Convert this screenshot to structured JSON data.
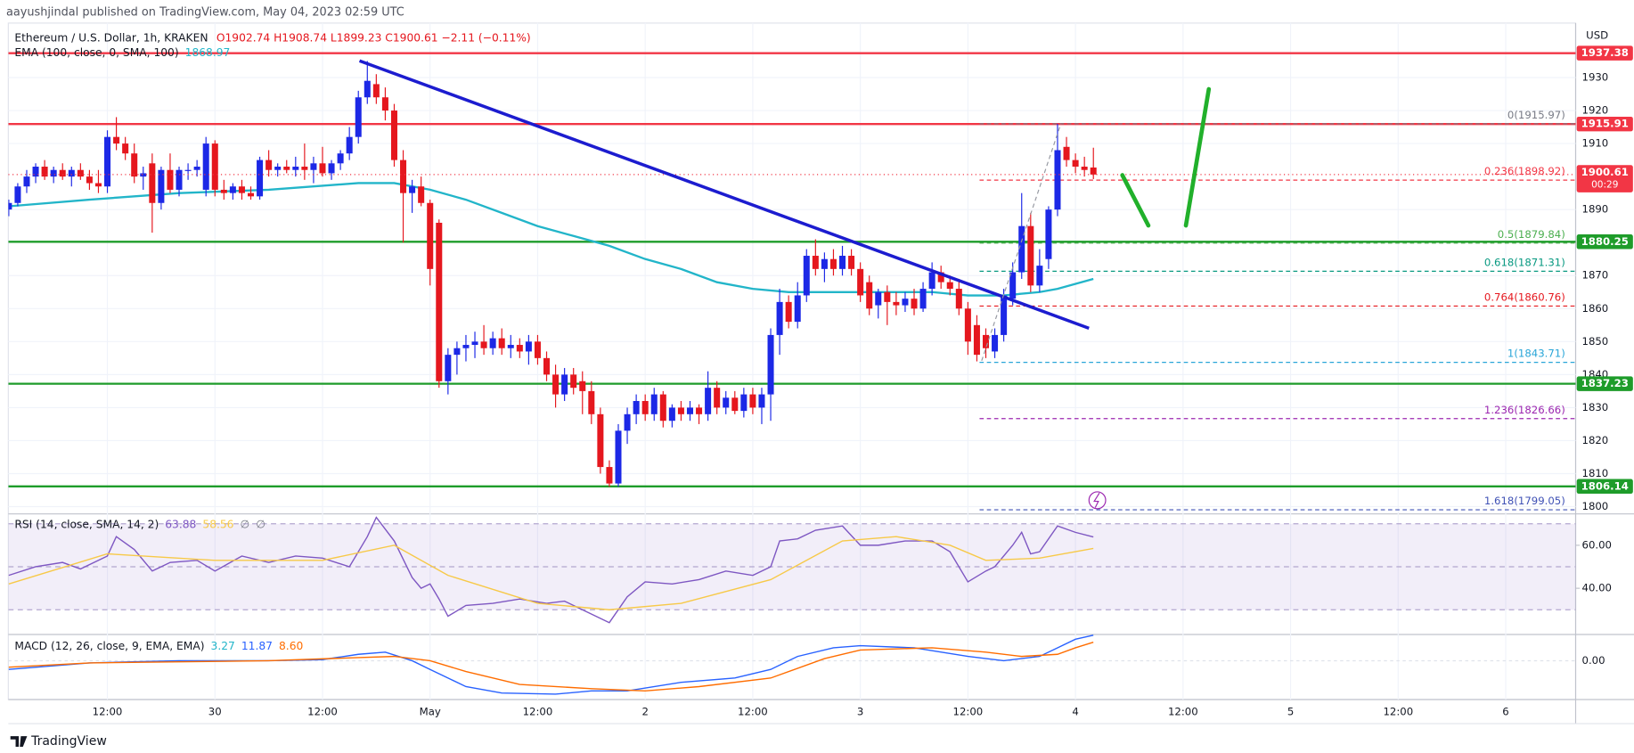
{
  "header": {
    "published": "aayushjindal published on TradingView.com, May 04, 2023 02:59 UTC",
    "footer": "TradingView"
  },
  "chart_data": {
    "type": "candlestick",
    "title": "Ethereum / U.S. Dollar, 1h, KRAKEN",
    "ohlc_legend": "O1902.74 H1908.74 L1899.23 C1900.61 −2.11 (−0.11%)",
    "currency": "USD",
    "up_color": "#1c28e6",
    "down_color": "#e5171e",
    "grid": true,
    "xlim": [
      0.95,
      175.8
    ],
    "xticks": [
      {
        "value": 12,
        "label": "12:00"
      },
      {
        "value": 24,
        "label": "30"
      },
      {
        "value": 36,
        "label": "12:00"
      },
      {
        "value": 48,
        "label": "May"
      },
      {
        "value": 60,
        "label": "12:00"
      },
      {
        "value": 72,
        "label": "2"
      },
      {
        "value": 84,
        "label": "12:00"
      },
      {
        "value": 96,
        "label": "3"
      },
      {
        "value": 108,
        "label": "12:00"
      },
      {
        "value": 120,
        "label": "4"
      },
      {
        "value": 132,
        "label": "12:00"
      },
      {
        "value": 144,
        "label": "5"
      },
      {
        "value": 156,
        "label": "12:00"
      },
      {
        "value": 168,
        "label": "6"
      }
    ],
    "ylim": [
      1797.8,
      1946.5
    ],
    "yticks": [
      1930,
      1920,
      1910,
      1890,
      1870,
      1860,
      1850,
      1840,
      1830,
      1820,
      1810,
      1800
    ],
    "candles": [
      [
        1,
        1890,
        1893,
        1888,
        1892
      ],
      [
        2,
        1892,
        1898,
        1891,
        1897
      ],
      [
        3,
        1897,
        1902,
        1895,
        1900
      ],
      [
        4,
        1900,
        1904,
        1898,
        1903
      ],
      [
        5,
        1903,
        1905,
        1899,
        1900
      ],
      [
        6,
        1900,
        1903,
        1898,
        1902
      ],
      [
        7,
        1902,
        1904,
        1899,
        1900
      ],
      [
        8,
        1900,
        1903,
        1897,
        1902
      ],
      [
        9,
        1902,
        1904,
        1899,
        1900
      ],
      [
        10,
        1900,
        1902,
        1896,
        1898
      ],
      [
        11,
        1898,
        1902,
        1895,
        1897
      ],
      [
        12,
        1897,
        1914,
        1895,
        1912
      ],
      [
        13,
        1912,
        1918,
        1908,
        1910
      ],
      [
        14,
        1910,
        1912,
        1905,
        1907
      ],
      [
        15,
        1907,
        1910,
        1898,
        1900
      ],
      [
        16,
        1900,
        1903,
        1896,
        1901
      ],
      [
        17,
        1904,
        1907,
        1883,
        1892
      ],
      [
        18,
        1892,
        1903,
        1890,
        1902
      ],
      [
        19,
        1902,
        1907,
        1895,
        1896
      ],
      [
        20,
        1896,
        1903,
        1894,
        1902
      ],
      [
        21,
        1902,
        1904,
        1899,
        1902
      ],
      [
        22,
        1902,
        1905,
        1900,
        1903
      ],
      [
        23,
        1896,
        1912,
        1894,
        1910
      ],
      [
        24,
        1910,
        1911,
        1894,
        1896
      ],
      [
        25,
        1896,
        1899,
        1893,
        1895
      ],
      [
        26,
        1895,
        1898,
        1893,
        1897
      ],
      [
        27,
        1897,
        1899,
        1893,
        1895
      ],
      [
        28,
        1895,
        1897,
        1893,
        1894
      ],
      [
        29,
        1894,
        1906,
        1893,
        1905
      ],
      [
        30,
        1905,
        1908,
        1900,
        1902
      ],
      [
        31,
        1902,
        1904,
        1900,
        1903
      ],
      [
        32,
        1903,
        1905,
        1901,
        1902
      ],
      [
        33,
        1902,
        1906,
        1900,
        1903
      ],
      [
        34,
        1903,
        1910,
        1899,
        1902
      ],
      [
        35,
        1902,
        1906,
        1898,
        1904
      ],
      [
        36,
        1904,
        1909,
        1900,
        1901
      ],
      [
        37,
        1901,
        1905,
        1899,
        1904
      ],
      [
        38,
        1904,
        1908,
        1902,
        1907
      ],
      [
        39,
        1907,
        1915,
        1905,
        1912
      ],
      [
        40,
        1912,
        1926,
        1910,
        1924
      ],
      [
        41,
        1924,
        1935,
        1922,
        1929
      ],
      [
        42,
        1928,
        1931,
        1922,
        1924
      ],
      [
        43,
        1924,
        1927,
        1917,
        1920
      ],
      [
        44,
        1920,
        1922,
        1903,
        1905
      ],
      [
        45,
        1905,
        1908,
        1880,
        1895
      ],
      [
        46,
        1895,
        1899,
        1889,
        1897
      ],
      [
        47,
        1897,
        1900,
        1891,
        1892
      ],
      [
        48,
        1892,
        1893,
        1867,
        1872
      ],
      [
        49,
        1886,
        1887,
        1836,
        1838
      ],
      [
        50,
        1838,
        1848,
        1834,
        1846
      ],
      [
        51,
        1846,
        1850,
        1840,
        1848
      ],
      [
        52,
        1848,
        1852,
        1844,
        1849
      ],
      [
        53,
        1849,
        1853,
        1845,
        1850
      ],
      [
        54,
        1850,
        1855,
        1846,
        1848
      ],
      [
        55,
        1848,
        1853,
        1846,
        1851
      ],
      [
        56,
        1851,
        1854,
        1846,
        1848
      ],
      [
        57,
        1848,
        1852,
        1845,
        1849
      ],
      [
        58,
        1849,
        1851,
        1845,
        1847
      ],
      [
        59,
        1847,
        1852,
        1843,
        1850
      ],
      [
        60,
        1850,
        1852,
        1843,
        1845
      ],
      [
        61,
        1845,
        1847,
        1838,
        1840
      ],
      [
        62,
        1840,
        1843,
        1830,
        1834
      ],
      [
        63,
        1834,
        1842,
        1832,
        1840
      ],
      [
        64,
        1840,
        1842,
        1834,
        1836
      ],
      [
        65,
        1838,
        1841,
        1828,
        1835
      ],
      [
        66,
        1835,
        1838,
        1825,
        1828
      ],
      [
        67,
        1828,
        1830,
        1810,
        1812
      ],
      [
        68,
        1812,
        1814,
        1806,
        1807
      ],
      [
        69,
        1807,
        1825,
        1806,
        1823
      ],
      [
        70,
        1823,
        1830,
        1819,
        1828
      ],
      [
        71,
        1828,
        1834,
        1825,
        1832
      ],
      [
        72,
        1832,
        1834,
        1826,
        1828
      ],
      [
        73,
        1828,
        1836,
        1826,
        1834
      ],
      [
        74,
        1834,
        1835,
        1824,
        1826
      ],
      [
        75,
        1826,
        1831,
        1824,
        1830
      ],
      [
        76,
        1830,
        1832,
        1826,
        1828
      ],
      [
        77,
        1828,
        1832,
        1826,
        1830
      ],
      [
        78,
        1830,
        1831,
        1825,
        1828
      ],
      [
        79,
        1828,
        1841,
        1826,
        1836
      ],
      [
        80,
        1836,
        1838,
        1828,
        1830
      ],
      [
        81,
        1830,
        1835,
        1828,
        1833
      ],
      [
        82,
        1833,
        1835,
        1828,
        1829
      ],
      [
        83,
        1829,
        1836,
        1827,
        1834
      ],
      [
        84,
        1834,
        1836,
        1828,
        1830
      ],
      [
        85,
        1830,
        1836,
        1825,
        1834
      ],
      [
        86,
        1834,
        1854,
        1826,
        1852
      ],
      [
        87,
        1852,
        1866,
        1846,
        1862
      ],
      [
        88,
        1862,
        1864,
        1854,
        1856
      ],
      [
        89,
        1856,
        1868,
        1854,
        1864
      ],
      [
        90,
        1864,
        1878,
        1862,
        1876
      ],
      [
        91,
        1876,
        1881,
        1870,
        1872
      ],
      [
        92,
        1872,
        1877,
        1868,
        1875
      ],
      [
        93,
        1875,
        1878,
        1870,
        1872
      ],
      [
        94,
        1872,
        1879,
        1870,
        1876
      ],
      [
        95,
        1876,
        1878,
        1870,
        1872
      ],
      [
        96,
        1872,
        1874,
        1862,
        1864
      ],
      [
        97,
        1868,
        1870,
        1858,
        1860
      ],
      [
        98,
        1861,
        1866,
        1857,
        1865
      ],
      [
        99,
        1865,
        1867,
        1855,
        1862
      ],
      [
        100,
        1862,
        1865,
        1858,
        1861
      ],
      [
        101,
        1861,
        1865,
        1859,
        1863
      ],
      [
        102,
        1863,
        1866,
        1858,
        1860
      ],
      [
        103,
        1860,
        1868,
        1859,
        1866
      ],
      [
        104,
        1866,
        1874,
        1864,
        1871
      ],
      [
        105,
        1871,
        1873,
        1866,
        1868
      ],
      [
        106,
        1868,
        1870,
        1864,
        1866
      ],
      [
        107,
        1866,
        1869,
        1858,
        1860
      ],
      [
        108,
        1860,
        1862,
        1846,
        1850
      ],
      [
        109,
        1855,
        1858,
        1844,
        1846
      ],
      [
        110,
        1852,
        1854,
        1845,
        1848
      ],
      [
        111,
        1847,
        1854,
        1845,
        1852
      ],
      [
        112,
        1852,
        1866,
        1850,
        1864
      ],
      [
        113,
        1863,
        1874,
        1861,
        1871
      ],
      [
        114,
        1871,
        1895,
        1869,
        1885
      ],
      [
        115,
        1885,
        1889,
        1865,
        1867
      ],
      [
        116,
        1867,
        1878,
        1865,
        1873
      ],
      [
        117,
        1875,
        1891,
        1872,
        1890
      ],
      [
        118,
        1890,
        1916,
        1888,
        1908
      ],
      [
        119,
        1909,
        1912,
        1903,
        1905
      ],
      [
        120,
        1905,
        1907,
        1901,
        1903
      ],
      [
        121,
        1903,
        1906,
        1900,
        1902
      ],
      [
        122,
        1902.74,
        1908.74,
        1899.23,
        1900.61
      ]
    ],
    "ema": {
      "name": "EMA (100, close, 0, SMA, 100)",
      "legend_value": "1868.97",
      "color": "#22b5c9",
      "x": [
        1,
        10,
        20,
        30,
        40,
        44,
        48,
        52,
        56,
        60,
        64,
        68,
        72,
        76,
        80,
        84,
        88,
        92,
        96,
        100,
        104,
        108,
        112,
        116,
        118,
        122
      ],
      "values": [
        1891,
        1893,
        1895,
        1896,
        1898,
        1898,
        1896,
        1893,
        1889,
        1885,
        1882,
        1879,
        1875,
        1872,
        1868,
        1866,
        1865,
        1865,
        1865,
        1865,
        1865,
        1864,
        1864,
        1865,
        1866,
        1868.97
      ]
    },
    "levels": [
      {
        "price": 1937.38,
        "color": "#f23645"
      },
      {
        "price": 1915.91,
        "color": "#f23645"
      },
      {
        "price": 1880.25,
        "color": "#1e9c2a"
      },
      {
        "price": 1837.23,
        "color": "#1e9c2a"
      },
      {
        "price": 1806.14,
        "color": "#1e9c2a"
      }
    ],
    "last_price": {
      "price": 1900.61,
      "countdown": "00:29",
      "color": "#f23645"
    },
    "fib": [
      {
        "label": "0(1915.97)",
        "price": 1915.97,
        "color": "#787b86"
      },
      {
        "label": "0.236(1898.92)",
        "price": 1898.92,
        "color": "#f23645"
      },
      {
        "label": "0.5(1879.84)",
        "price": 1879.84,
        "color": "#4caf50"
      },
      {
        "label": "0.618(1871.31)",
        "price": 1871.31,
        "color": "#089981"
      },
      {
        "label": "0.764(1860.76)",
        "price": 1860.76,
        "color": "#e5171e"
      },
      {
        "label": "1(1843.71)",
        "price": 1843.71,
        "color": "#2aa6d8"
      },
      {
        "label": "1.236(1826.66)",
        "price": 1826.66,
        "color": "#9c27b0"
      },
      {
        "label": "1.618(1799.05)",
        "price": 1799.05,
        "color": "#3f51b5"
      }
    ],
    "rsi": {
      "name": "RSI (14, close, SMA, 14, 2)",
      "legend_values": [
        "63.88",
        "58.56",
        "∅",
        "∅"
      ],
      "ylim": [
        18.5,
        74.6
      ],
      "yticks": [
        {
          "value": 60,
          "label": "60.00"
        },
        {
          "value": 40,
          "label": "40.00"
        }
      ],
      "bands": [
        70,
        50,
        30
      ],
      "series": [
        {
          "color": "#7e57c2",
          "x": [
            1,
            4,
            7,
            9,
            12,
            13,
            15,
            17,
            19,
            22,
            24,
            27,
            30,
            33,
            36,
            39,
            41,
            42,
            44,
            46,
            47,
            48,
            49,
            50,
            52,
            55,
            58,
            61,
            63,
            65,
            68,
            70,
            72,
            75,
            78,
            81,
            84,
            86,
            87,
            89,
            91,
            94,
            96,
            98,
            101,
            104,
            106,
            108,
            110,
            111,
            113,
            114,
            115,
            116,
            118,
            120,
            122
          ],
          "values": [
            46,
            50,
            52,
            49,
            55,
            64,
            58,
            48,
            52,
            53,
            48,
            55,
            52,
            55,
            54,
            50,
            64,
            73,
            62,
            45,
            40,
            42,
            35,
            27,
            32,
            33,
            35,
            33,
            34,
            30,
            24,
            36,
            43,
            42,
            44,
            48,
            46,
            50,
            62,
            63,
            67,
            69,
            60,
            60,
            62,
            62,
            57,
            43,
            48,
            50,
            60,
            66,
            56,
            57,
            69,
            66,
            63.88
          ]
        },
        {
          "color": "#f7c948",
          "x": [
            1,
            12,
            24,
            36,
            44,
            50,
            60,
            68,
            76,
            86,
            94,
            100,
            106,
            110,
            116,
            122
          ],
          "values": [
            42,
            56,
            53,
            53,
            60,
            46,
            33,
            30,
            33,
            44,
            62,
            64,
            60,
            53,
            54,
            58.56
          ]
        }
      ]
    },
    "macd": {
      "name": "MACD (12, 26, close, 9, EMA, EMA)",
      "legend_values": [
        "3.27",
        "11.87",
        "8.60"
      ],
      "ylim": [
        -18,
        12.2
      ],
      "yticks": [
        {
          "value": 0,
          "label": "0.00"
        }
      ],
      "series": [
        {
          "color": "#2962ff",
          "x": [
            1,
            10,
            20,
            30,
            36,
            40,
            43,
            46,
            48,
            52,
            56,
            62,
            66,
            70,
            76,
            82,
            86,
            89,
            93,
            96,
            102,
            108,
            112,
            116,
            118,
            120,
            122
          ],
          "values": [
            -4,
            -1,
            0,
            0,
            0.5,
            3,
            4,
            0,
            -4,
            -12,
            -15,
            -15.5,
            -14,
            -14,
            -10,
            -8,
            -4,
            2,
            6,
            7,
            6,
            2,
            0,
            2,
            6,
            10,
            11.87
          ]
        },
        {
          "color": "#ff6d00",
          "x": [
            1,
            10,
            20,
            30,
            40,
            44,
            48,
            52,
            58,
            66,
            72,
            78,
            86,
            92,
            96,
            104,
            110,
            114,
            118,
            120,
            122
          ],
          "values": [
            -3,
            -1,
            -0.5,
            0,
            1.5,
            2,
            0,
            -5,
            -11,
            -13,
            -14,
            -12,
            -8,
            1,
            5,
            6,
            4,
            2,
            3,
            6,
            8.6
          ]
        }
      ]
    }
  }
}
